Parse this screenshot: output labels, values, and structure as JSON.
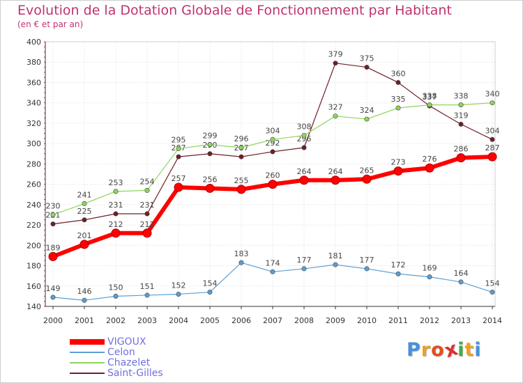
{
  "title": "Evolution de la Dotation Globale de Fonctionnement par Habitant",
  "subtitle": "(en € et par an)",
  "logo": {
    "text": "Proxiti",
    "letters": [
      {
        "ch": "P",
        "color": "#4a90d9"
      },
      {
        "ch": "r",
        "color": "#f0a020"
      },
      {
        "ch": "o",
        "color": "#e05020"
      },
      {
        "ch": "x",
        "color": "#e03030"
      },
      {
        "ch": "i",
        "color": "#3cb043"
      },
      {
        "ch": "t",
        "color": "#f0a020"
      },
      {
        "ch": "i",
        "color": "#4a90d9"
      }
    ]
  },
  "chart_data": {
    "type": "line",
    "title": "Evolution de la Dotation Globale de Fonctionnement par Habitant",
    "subtitle": "(en € et par an)",
    "xlabel": "",
    "ylabel": "",
    "ylim": [
      140,
      400
    ],
    "yticks": [
      140,
      160,
      180,
      200,
      220,
      240,
      260,
      280,
      300,
      320,
      340,
      360,
      380,
      400
    ],
    "grid": true,
    "legend_position": "bottom-left",
    "x": [
      "2000",
      "2001",
      "2002",
      "2003",
      "2004",
      "2005",
      "2006",
      "2007",
      "2008",
      "2009",
      "2010",
      "2011",
      "2012",
      "2013",
      "2014"
    ],
    "series": [
      {
        "name": "Saint-Gilles",
        "color": "#6e1e28",
        "width": 1.2,
        "values": [
          221,
          225,
          231,
          231,
          287,
          290,
          287,
          292,
          296,
          379,
          375,
          360,
          337,
          319,
          304
        ]
      },
      {
        "name": "Chazelet",
        "color": "#8fd45c",
        "width": 1.2,
        "values": [
          230,
          241,
          253,
          254,
          295,
          299,
          296,
          304,
          308,
          327,
          324,
          335,
          338,
          338,
          340
        ]
      },
      {
        "name": "Celon",
        "color": "#5a9fd4",
        "width": 1.2,
        "values": [
          149,
          146,
          150,
          151,
          152,
          154,
          183,
          174,
          177,
          181,
          177,
          172,
          169,
          164,
          154
        ]
      },
      {
        "name": "VIGOUX",
        "color": "#ff0000",
        "width": 6,
        "values": [
          189,
          201,
          212,
          212,
          257,
          256,
          255,
          260,
          264,
          264,
          265,
          273,
          276,
          286,
          287
        ]
      }
    ],
    "legend_order": [
      "VIGOUX",
      "Celon",
      "Chazelet",
      "Saint-Gilles"
    ]
  }
}
